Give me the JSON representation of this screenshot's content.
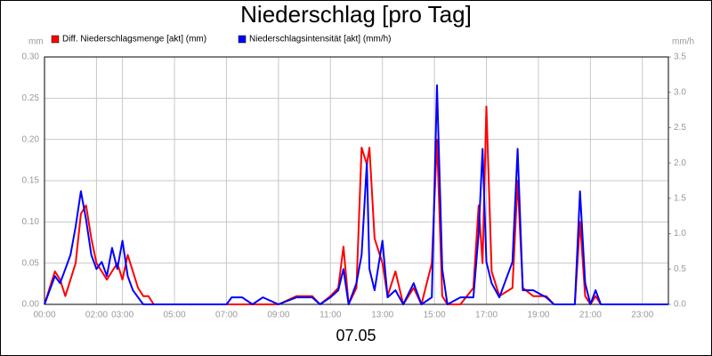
{
  "chart_data": {
    "type": "line",
    "title": "Niederschlag [pro Tag]",
    "xlabel": "07.05",
    "ylabel": "mm",
    "y2label": "mm/h",
    "x": [
      0,
      0.2,
      0.4,
      0.6,
      0.8,
      1.0,
      1.2,
      1.4,
      1.6,
      1.8,
      2.0,
      2.2,
      2.4,
      2.6,
      2.8,
      3.0,
      3.2,
      3.4,
      3.6,
      3.8,
      4.0,
      4.2,
      4.4,
      7.0,
      7.2,
      7.6,
      8.0,
      8.4,
      9.0,
      9.7,
      10.3,
      10.6,
      11.0,
      11.3,
      11.5,
      11.7,
      12.0,
      12.2,
      12.4,
      12.5,
      12.7,
      13.0,
      13.2,
      13.5,
      13.8,
      14.2,
      14.5,
      14.9,
      15.1,
      15.3,
      15.5,
      16.0,
      16.5,
      16.7,
      16.85,
      17.0,
      17.2,
      17.5,
      18.0,
      18.2,
      18.4,
      18.8,
      19.3,
      19.6,
      20.4,
      20.6,
      20.8,
      21.0,
      21.2,
      21.4,
      24
    ],
    "series": [
      {
        "name": "Diff. Niederschlagsmenge [akt] (mm)",
        "color": "#ff0000",
        "values": [
          0,
          0.02,
          0.04,
          0.03,
          0.01,
          0.03,
          0.05,
          0.11,
          0.12,
          0.08,
          0.05,
          0.04,
          0.03,
          0.04,
          0.05,
          0.03,
          0.06,
          0.04,
          0.02,
          0.01,
          0.01,
          0,
          0,
          0,
          0,
          0,
          0,
          0,
          0,
          0.01,
          0.01,
          0,
          0.01,
          0.02,
          0.07,
          0,
          0.02,
          0.19,
          0.17,
          0.19,
          0.08,
          0.05,
          0.01,
          0.04,
          0,
          0.02,
          0,
          0.05,
          0.2,
          0.01,
          0,
          0,
          0.02,
          0.12,
          0.05,
          0.24,
          0.04,
          0.01,
          0.02,
          0.15,
          0.02,
          0.01,
          0.01,
          0,
          0,
          0.1,
          0.01,
          0,
          0.01,
          0,
          0
        ]
      },
      {
        "name": "Niederschlagsintensität [akt] (mm/h)",
        "color": "#0000ff",
        "axis": "y2",
        "values": [
          0,
          0.2,
          0.4,
          0.3,
          0.5,
          0.7,
          1.1,
          1.6,
          1.2,
          0.7,
          0.5,
          0.6,
          0.4,
          0.8,
          0.5,
          0.9,
          0.4,
          0.2,
          0.1,
          0,
          0,
          0,
          0,
          0,
          0.1,
          0.1,
          0,
          0.1,
          0,
          0.1,
          0.1,
          0,
          0.1,
          0.2,
          0.5,
          0,
          0.3,
          0.7,
          2.0,
          0.5,
          0.2,
          0.9,
          0.1,
          0.2,
          0,
          0.3,
          0,
          0.1,
          3.1,
          0.5,
          0,
          0.1,
          0.1,
          1.0,
          2.2,
          0.6,
          0.3,
          0.1,
          0.6,
          2.2,
          0.2,
          0.2,
          0.1,
          0,
          0,
          1.6,
          0.3,
          0,
          0.2,
          0,
          0
        ]
      }
    ],
    "xlim": [
      0,
      24
    ],
    "xticks": [
      {
        "value": 0,
        "label": "00:00"
      },
      {
        "value": 2,
        "label": "02:00"
      },
      {
        "value": 3,
        "label": "03:00"
      },
      {
        "value": 5,
        "label": "05:00"
      },
      {
        "value": 7,
        "label": "07:00"
      },
      {
        "value": 9,
        "label": "09:00"
      },
      {
        "value": 11,
        "label": "11:00"
      },
      {
        "value": 13,
        "label": "13:00"
      },
      {
        "value": 15,
        "label": "15:00"
      },
      {
        "value": 17,
        "label": "17:00"
      },
      {
        "value": 19,
        "label": "19:00"
      },
      {
        "value": 21,
        "label": "21:00"
      },
      {
        "value": 23,
        "label": "23:00"
      }
    ],
    "ylim": [
      0,
      0.3
    ],
    "yticks": [
      {
        "value": 0,
        "label": "0.00"
      },
      {
        "value": 0.05,
        "label": "0.05"
      },
      {
        "value": 0.1,
        "label": "0.10"
      },
      {
        "value": 0.15,
        "label": "0.15"
      },
      {
        "value": 0.2,
        "label": "0.20"
      },
      {
        "value": 0.25,
        "label": "0.25"
      },
      {
        "value": 0.3,
        "label": "0.30"
      }
    ],
    "y2lim": [
      0,
      3.5
    ],
    "y2ticks": [
      {
        "value": 0,
        "label": "0.0"
      },
      {
        "value": 0.5,
        "label": "0.5"
      },
      {
        "value": 1,
        "label": "1.0"
      },
      {
        "value": 1.5,
        "label": "1.5"
      },
      {
        "value": 2,
        "label": "2.0"
      },
      {
        "value": 2.5,
        "label": "2.5"
      },
      {
        "value": 3,
        "label": "3.0"
      },
      {
        "value": 3.5,
        "label": "3.5"
      }
    ],
    "grid": true
  }
}
